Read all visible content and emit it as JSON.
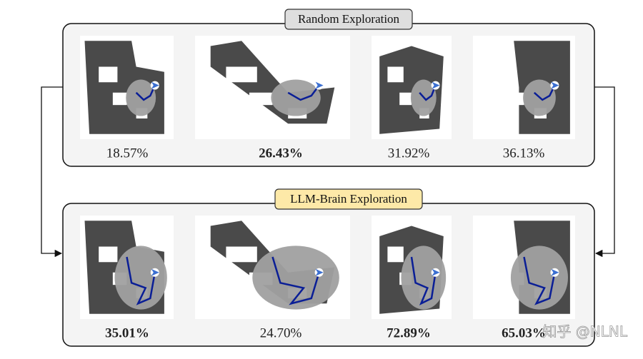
{
  "panels": [
    {
      "label": "Random Exploration",
      "results": [
        {
          "text": "18.57%",
          "bold": false
        },
        {
          "text": "26.43%",
          "bold": true
        },
        {
          "text": "31.92%",
          "bold": false
        },
        {
          "text": "36.13%",
          "bold": false
        }
      ]
    },
    {
      "label": "LLM-Brain Exploration",
      "results": [
        {
          "text": "35.01%",
          "bold": true
        },
        {
          "text": "24.70%",
          "bold": false
        },
        {
          "text": "72.89%",
          "bold": true
        },
        {
          "text": "65.03%",
          "bold": true
        }
      ]
    }
  ],
  "watermark": "知乎 @NLNL"
}
